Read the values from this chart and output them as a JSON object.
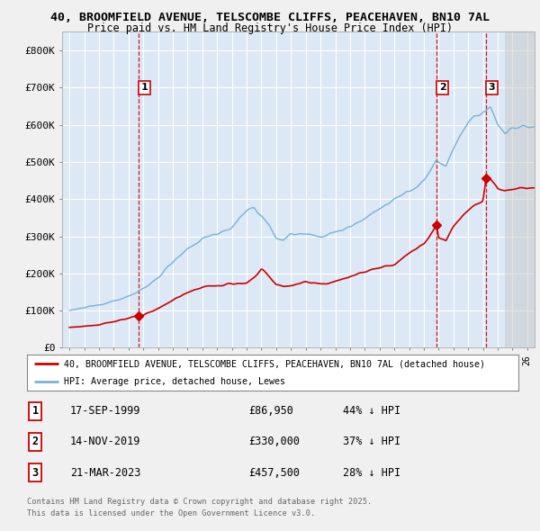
{
  "title_line1": "40, BROOMFIELD AVENUE, TELSCOMBE CLIFFS, PEACEHAVEN, BN10 7AL",
  "title_line2": "Price paid vs. HM Land Registry's House Price Index (HPI)",
  "background_color": "#f0f0f0",
  "plot_bg_color": "#dce8f5",
  "grid_color": "#ffffff",
  "hpi_color": "#7ab0d4",
  "price_color": "#cc0000",
  "dashed_line_color": "#cc0000",
  "legend_label_red": "40, BROOMFIELD AVENUE, TELSCOMBE CLIFFS, PEACEHAVEN, BN10 7AL (detached house)",
  "legend_label_blue": "HPI: Average price, detached house, Lewes",
  "sales": [
    {
      "num": 1,
      "date": "17-SEP-1999",
      "price": 86950,
      "pct": "44%",
      "x": 1999.71
    },
    {
      "num": 2,
      "date": "14-NOV-2019",
      "price": 330000,
      "pct": "37%",
      "x": 2019.87
    },
    {
      "num": 3,
      "date": "21-MAR-2023",
      "price": 457500,
      "pct": "28%",
      "x": 2023.22
    }
  ],
  "footer_line1": "Contains HM Land Registry data © Crown copyright and database right 2025.",
  "footer_line2": "This data is licensed under the Open Government Licence v3.0.",
  "ylim_max": 850000,
  "ylim_min": 0,
  "xmin": 1994.5,
  "xmax": 2026.5,
  "future_shade_start": 2024.5,
  "yticks": [
    0,
    100000,
    200000,
    300000,
    400000,
    500000,
    600000,
    700000,
    800000
  ],
  "ylabels": [
    "£0",
    "£100K",
    "£200K",
    "£300K",
    "£400K",
    "£500K",
    "£600K",
    "£700K",
    "£800K"
  ]
}
